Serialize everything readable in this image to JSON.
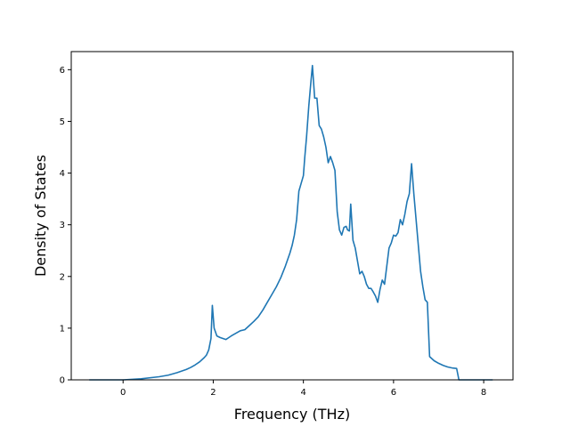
{
  "chart_data": {
    "type": "line",
    "title": "",
    "xlabel": "Frequency (THz)",
    "ylabel": "Density of States",
    "xlim": [
      -1.15,
      8.65
    ],
    "ylim": [
      0,
      6.35
    ],
    "xticks": [
      0,
      2,
      4,
      6,
      8
    ],
    "yticks": [
      0,
      1,
      2,
      3,
      4,
      5,
      6
    ],
    "grid": false,
    "legend": "none",
    "line_color": "#1f77b4",
    "series": [
      {
        "x": [
          -0.75,
          -0.4,
          0,
          0.4,
          0.8,
          1.0,
          1.2,
          1.4,
          1.5,
          1.6,
          1.7,
          1.8,
          1.85,
          1.9,
          1.95,
          1.98,
          2.02,
          2.08,
          2.15,
          2.28,
          2.4,
          2.5,
          2.6,
          2.7,
          2.8,
          2.9,
          3.0,
          3.1,
          3.2,
          3.3,
          3.4,
          3.5,
          3.6,
          3.7,
          3.75,
          3.8,
          3.85,
          3.9,
          3.95,
          4.0,
          4.03,
          4.07,
          4.12,
          4.16,
          4.2,
          4.25,
          4.3,
          4.35,
          4.4,
          4.45,
          4.5,
          4.55,
          4.6,
          4.65,
          4.7,
          4.75,
          4.8,
          4.85,
          4.9,
          4.95,
          4.98,
          5.02,
          5.05,
          5.1,
          5.15,
          5.2,
          5.25,
          5.3,
          5.35,
          5.4,
          5.45,
          5.5,
          5.55,
          5.6,
          5.65,
          5.7,
          5.75,
          5.8,
          5.85,
          5.9,
          5.95,
          6.0,
          6.05,
          6.1,
          6.15,
          6.2,
          6.25,
          6.3,
          6.35,
          6.4,
          6.45,
          6.5,
          6.55,
          6.6,
          6.65,
          6.7,
          6.75,
          6.8,
          6.9,
          7.0,
          7.1,
          7.2,
          7.3,
          7.4,
          7.45,
          7.5,
          7.8,
          8.2
        ],
        "y": [
          0,
          0,
          0,
          0.02,
          0.06,
          0.09,
          0.14,
          0.2,
          0.24,
          0.29,
          0.35,
          0.43,
          0.48,
          0.58,
          0.8,
          1.44,
          1.0,
          0.85,
          0.82,
          0.78,
          0.85,
          0.9,
          0.95,
          0.97,
          1.05,
          1.13,
          1.22,
          1.35,
          1.5,
          1.65,
          1.8,
          1.98,
          2.2,
          2.45,
          2.6,
          2.8,
          3.1,
          3.65,
          3.8,
          3.95,
          4.3,
          4.7,
          5.3,
          5.7,
          6.08,
          5.45,
          5.45,
          4.92,
          4.85,
          4.7,
          4.5,
          4.2,
          4.32,
          4.2,
          4.05,
          3.25,
          2.9,
          2.8,
          2.95,
          2.97,
          2.9,
          2.88,
          3.4,
          2.7,
          2.55,
          2.3,
          2.05,
          2.1,
          2.0,
          1.85,
          1.77,
          1.77,
          1.7,
          1.62,
          1.5,
          1.75,
          1.93,
          1.85,
          2.2,
          2.55,
          2.65,
          2.8,
          2.78,
          2.85,
          3.1,
          3.0,
          3.2,
          3.45,
          3.6,
          4.18,
          3.6,
          3.1,
          2.6,
          2.1,
          1.8,
          1.55,
          1.5,
          0.45,
          0.37,
          0.32,
          0.28,
          0.25,
          0.23,
          0.22,
          0,
          0,
          0,
          0
        ]
      }
    ]
  }
}
